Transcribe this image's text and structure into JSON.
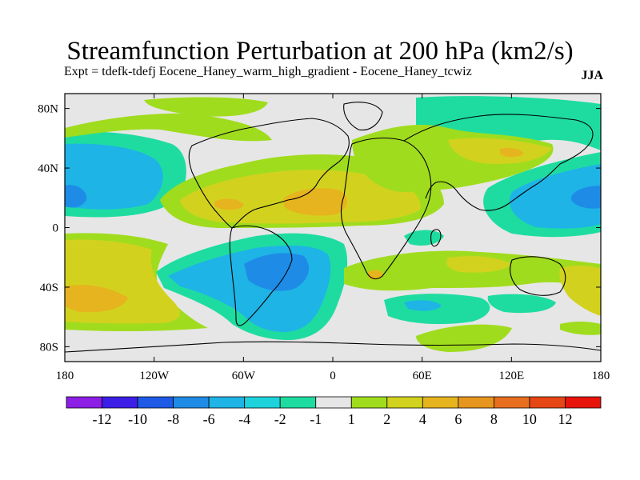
{
  "title": "Streamfunction Perturbation at 200 hPa (km2/s)",
  "subtitle": "Expt = tdefk-tdefj Eocene_Haney_warm_high_gradient - Eocene_Haney_tcwiz",
  "season": "JJA",
  "lon_ticks": [
    "180",
    "120W",
    "60W",
    "0",
    "60E",
    "120E",
    "180"
  ],
  "lat_ticks": [
    "80N",
    "40N",
    "0",
    "40S",
    "80S"
  ],
  "colorbar": {
    "labels": [
      "-12",
      "-10",
      "-8",
      "-6",
      "-4",
      "-2",
      "-1",
      "1",
      "2",
      "4",
      "6",
      "8",
      "10",
      "12"
    ],
    "colors": [
      "#8c1ee6",
      "#3c1ee6",
      "#1e5ae6",
      "#1e8ce6",
      "#1eb4e6",
      "#1ed2dc",
      "#1edca0",
      "#e6e6e6",
      "#a0dc1e",
      "#d2d21e",
      "#e6b41e",
      "#e6961e",
      "#e66e1e",
      "#e64614",
      "#e6140a"
    ]
  },
  "chart_data": {
    "type": "heatmap",
    "title": "Streamfunction Perturbation at 200 hPa (km2/s)",
    "xlim": [
      -180,
      180
    ],
    "ylim": [
      -90,
      90
    ],
    "units": "km2/s",
    "levels": [
      -12,
      -10,
      -8,
      -6,
      -4,
      -2,
      -1,
      1,
      2,
      4,
      6,
      8,
      10,
      12
    ],
    "features": [
      {
        "lon": -180,
        "lat": 20,
        "value": -6
      },
      {
        "lon": -150,
        "lat": 22,
        "value": -4
      },
      {
        "lon": 165,
        "lat": 18,
        "value": -6
      },
      {
        "lon": 130,
        "lat": 22,
        "value": -4
      },
      {
        "lon": 100,
        "lat": 70,
        "value": -2
      },
      {
        "lon": -45,
        "lat": -35,
        "value": -6
      },
      {
        "lon": -30,
        "lat": -60,
        "value": -4
      },
      {
        "lon": -90,
        "lat": -30,
        "value": -4
      },
      {
        "lon": -45,
        "lat": 15,
        "value": 6
      },
      {
        "lon": -115,
        "lat": 18,
        "value": 4
      },
      {
        "lon": -160,
        "lat": -45,
        "value": 6
      },
      {
        "lon": 30,
        "lat": 25,
        "value": 4
      },
      {
        "lon": 20,
        "lat": 40,
        "value": 2
      },
      {
        "lon": 90,
        "lat": -35,
        "value": 4
      },
      {
        "lon": 70,
        "lat": 55,
        "value": 4
      },
      {
        "lon": 100,
        "lat": -55,
        "value": -2
      },
      {
        "lon": 55,
        "lat": -50,
        "value": -2
      }
    ]
  }
}
